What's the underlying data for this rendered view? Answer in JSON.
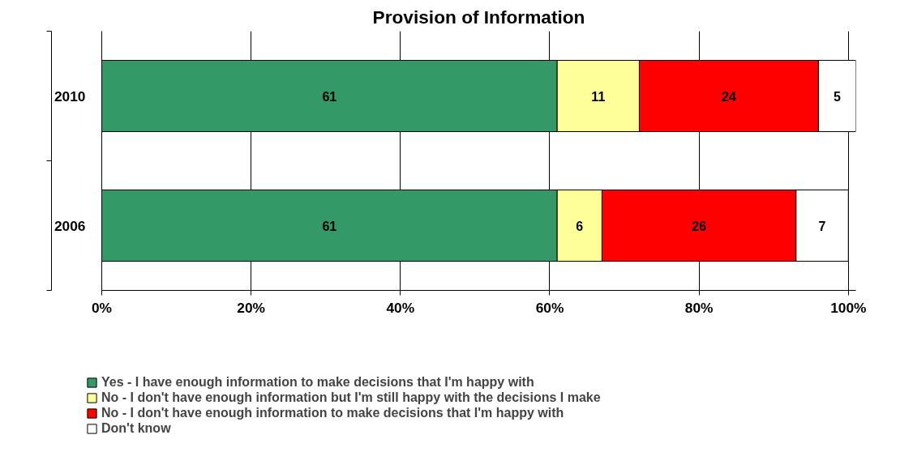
{
  "chart_data": {
    "type": "bar",
    "orientation": "horizontal",
    "stacked": true,
    "title": "Provision of Information",
    "categories": [
      "2010",
      "2006"
    ],
    "series": [
      {
        "name": "Yes - I have enough information to make decisions that I'm happy with",
        "color": "#339966",
        "values": [
          61,
          61
        ]
      },
      {
        "name": "No - I don't have enough information but I'm still happy with the decisions I make",
        "color": "#ffff99",
        "values": [
          11,
          6
        ]
      },
      {
        "name": "No - I don't have enough information to make decisions that I'm happy with",
        "color": "#ff0000",
        "values": [
          24,
          26
        ]
      },
      {
        "name": "Don't know",
        "color": "#ffffff",
        "values": [
          5,
          7
        ]
      }
    ],
    "xlim": [
      0,
      101
    ],
    "data_labels": true,
    "xticks": [
      {
        "value": 0,
        "label": "0%"
      },
      {
        "value": 20,
        "label": "20%"
      },
      {
        "value": 40,
        "label": "40%"
      },
      {
        "value": 60,
        "label": "60%"
      },
      {
        "value": 80,
        "label": "80%"
      },
      {
        "value": 100,
        "label": "100%"
      }
    ],
    "grid": "x",
    "legend": "bottom"
  }
}
